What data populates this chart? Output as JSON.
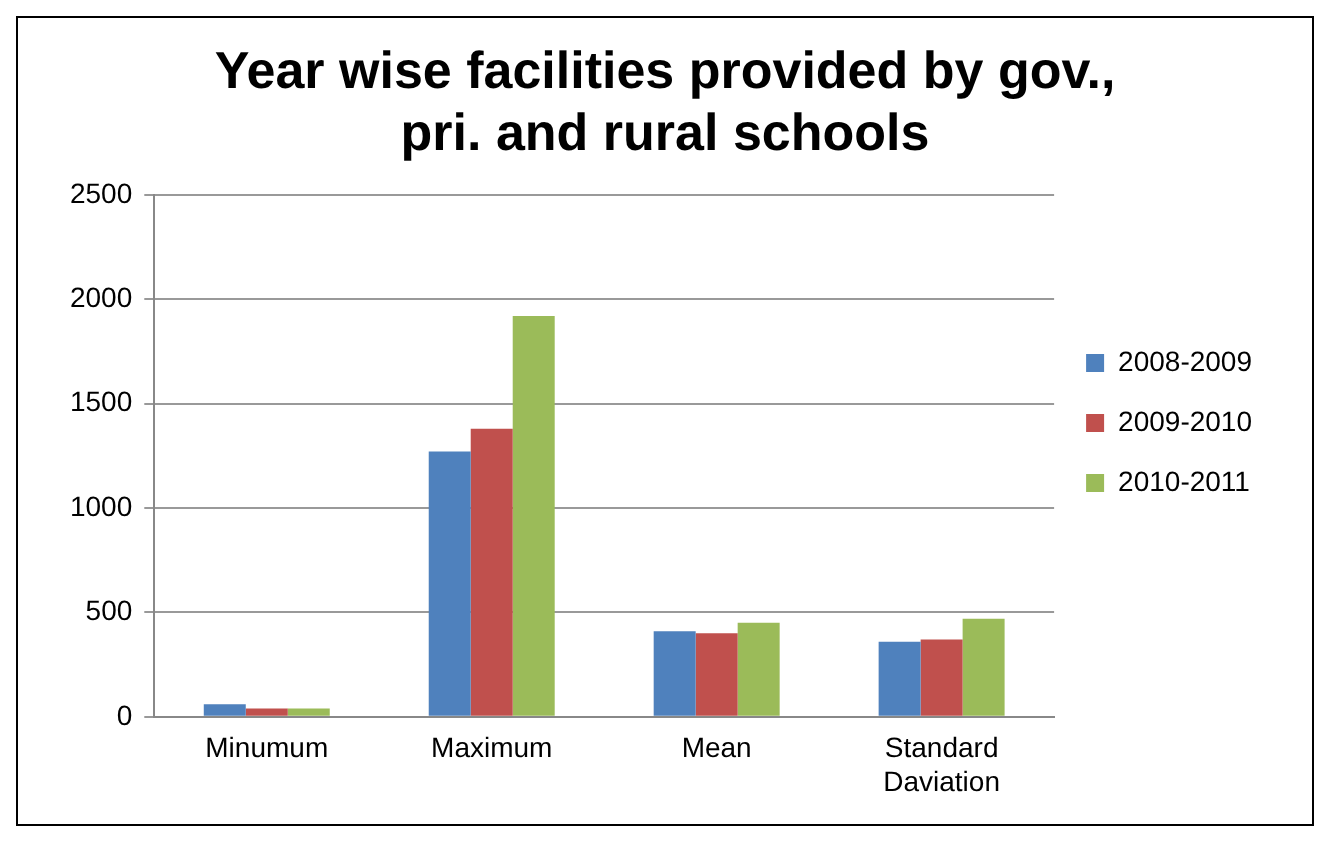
{
  "chart_data": {
    "type": "bar",
    "title": "Year wise facilities provided by gov., pri. and rural schools",
    "categories": [
      "Minumum",
      "Maximum",
      "Mean",
      "Standard Daviation"
    ],
    "series": [
      {
        "name": "2008-2009",
        "color": "#4f81bd",
        "values": [
          60,
          1270,
          410,
          360
        ]
      },
      {
        "name": "2009-2010",
        "color": "#c0504d",
        "values": [
          40,
          1380,
          400,
          370
        ]
      },
      {
        "name": "2010-2011",
        "color": "#9bbb59",
        "values": [
          40,
          1920,
          450,
          470
        ]
      }
    ],
    "ylim": [
      0,
      2500
    ],
    "yticks": [
      0,
      500,
      1000,
      1500,
      2000,
      2500
    ],
    "grid": "y",
    "legend": "right"
  }
}
